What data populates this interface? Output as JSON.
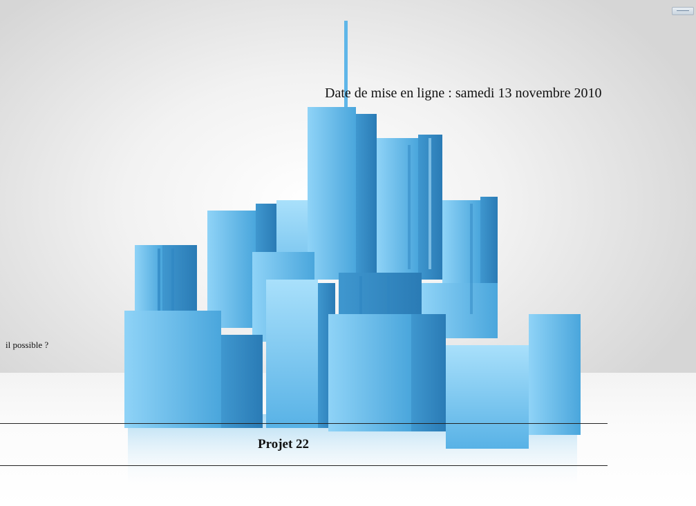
{
  "article": {
    "date_text": "Date de mise en ligne : samedi 13 novembre 2010",
    "question_fragment": "il possible ?",
    "project_title": "Projet 22"
  },
  "background": {
    "illustration": "city-skyline-illustration",
    "accent_color": "#4fb4ea"
  },
  "corner_widget": {
    "icon": "window-control-icon"
  }
}
